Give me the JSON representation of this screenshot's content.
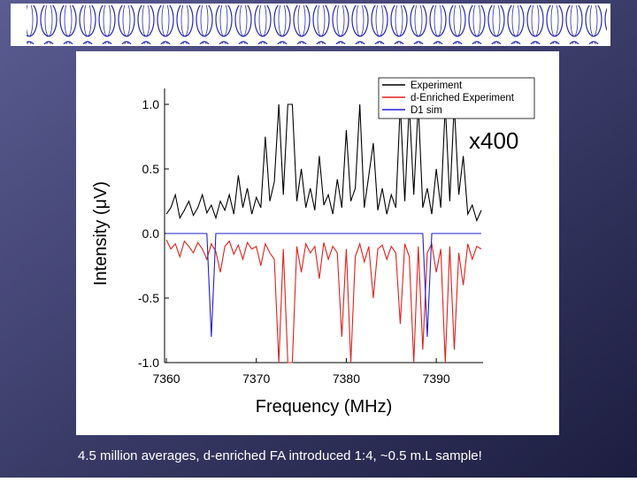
{
  "chart_data": {
    "type": "line",
    "x_label": "Frequency (MHz)",
    "y_label": "Intensity (μV)",
    "annotation": "x400",
    "xlim": [
      7359.8,
      7395.2
    ],
    "ylim": [
      -1.0,
      1.0
    ],
    "xticks": [
      7360,
      7370,
      7380,
      7390
    ],
    "yticks": [
      {
        "value": 1,
        "label": "1.0"
      },
      {
        "value": 0.5,
        "label": "0.5"
      },
      {
        "value": 0,
        "label": "0.0"
      },
      {
        "value": -0.5,
        "label": "-0.5"
      },
      {
        "value": -1,
        "label": "-1.0"
      }
    ],
    "legend": "top-right",
    "x": [
      7360,
      7360.5,
      7361,
      7361.5,
      7362,
      7362.5,
      7363,
      7363.5,
      7364,
      7364.5,
      7365,
      7365.5,
      7366,
      7366.5,
      7367,
      7367.5,
      7368,
      7368.5,
      7369,
      7369.5,
      7370,
      7370.5,
      7371,
      7371.5,
      7372,
      7372.5,
      7373,
      7373.5,
      7374,
      7374.5,
      7375,
      7375.5,
      7376,
      7376.5,
      7377,
      7377.5,
      7378,
      7378.5,
      7379,
      7379.5,
      7380,
      7380.5,
      7381,
      7381.5,
      7382,
      7382.5,
      7383,
      7383.5,
      7384,
      7384.5,
      7385,
      7385.5,
      7386,
      7386.5,
      7387,
      7387.5,
      7388,
      7388.5,
      7389,
      7389.5,
      7390,
      7390.5,
      7391,
      7391.5,
      7392,
      7392.5,
      7393,
      7393.5,
      7394,
      7394.5,
      7395
    ],
    "series": [
      {
        "name": "Experiment",
        "color": "#000000",
        "values": [
          0.15,
          0.2,
          0.3,
          0.12,
          0.18,
          0.25,
          0.14,
          0.2,
          0.3,
          0.16,
          0.22,
          0.12,
          0.25,
          0.18,
          0.3,
          0.15,
          0.45,
          0.2,
          0.35,
          0.15,
          0.28,
          0.2,
          0.75,
          0.25,
          0.4,
          1.0,
          0.3,
          1.0,
          1.0,
          0.25,
          0.5,
          0.2,
          0.35,
          0.18,
          0.6,
          0.22,
          0.3,
          0.15,
          0.42,
          0.2,
          0.8,
          0.25,
          0.35,
          1.0,
          0.2,
          0.45,
          0.7,
          0.18,
          0.35,
          0.15,
          0.3,
          0.2,
          1.0,
          0.25,
          1.0,
          0.3,
          1.0,
          0.2,
          0.35,
          0.15,
          0.5,
          0.2,
          1.0,
          0.25,
          1.0,
          0.3,
          0.6,
          0.15,
          0.22,
          0.1,
          0.18
        ]
      },
      {
        "name": "d-Enriched Experiment",
        "color": "#e0201c",
        "values": [
          -0.05,
          -0.12,
          -0.08,
          -0.18,
          -0.06,
          -0.1,
          -0.15,
          -0.07,
          -0.12,
          -0.2,
          -0.08,
          -0.14,
          -0.3,
          -0.1,
          -0.06,
          -0.16,
          -0.09,
          -0.2,
          -0.07,
          -0.12,
          -0.1,
          -0.25,
          -0.08,
          -0.15,
          -0.2,
          -1.0,
          -0.12,
          -1.0,
          -1.0,
          -0.1,
          -0.3,
          -0.08,
          -0.15,
          -0.1,
          -0.35,
          -0.07,
          -0.2,
          -0.1,
          -0.15,
          -0.8,
          -0.12,
          -1.0,
          -0.18,
          -0.08,
          -0.22,
          -0.1,
          -0.5,
          -0.12,
          -0.09,
          -0.2,
          -0.1,
          -0.15,
          -0.7,
          -0.08,
          -0.18,
          -1.0,
          -0.1,
          -0.9,
          -0.15,
          -0.08,
          -0.3,
          -0.12,
          -1.0,
          -0.1,
          -0.9,
          -0.15,
          -0.4,
          -0.08,
          -0.2,
          -0.1,
          -0.12
        ]
      },
      {
        "name": "D1 sim",
        "color": "#2020d0",
        "values": [
          0,
          0,
          0,
          0,
          0,
          0,
          0,
          0,
          0,
          0,
          -0.8,
          0,
          0,
          0,
          0,
          0,
          0,
          0,
          0,
          0,
          0,
          0,
          0,
          0,
          0,
          0,
          0,
          0,
          0,
          0,
          0,
          0,
          0,
          0,
          0,
          0,
          0,
          0,
          0,
          0,
          0,
          0,
          0,
          0,
          0,
          0,
          0,
          0,
          0,
          0,
          0,
          0,
          0,
          0,
          0,
          0,
          0,
          0,
          -0.8,
          0,
          0,
          0,
          0,
          0,
          0,
          0,
          0,
          0,
          0,
          0,
          0
        ]
      }
    ]
  },
  "caption": "4.5 million averages, d-enriched FA introduced 1:4, ~0.5 m.L sample!"
}
